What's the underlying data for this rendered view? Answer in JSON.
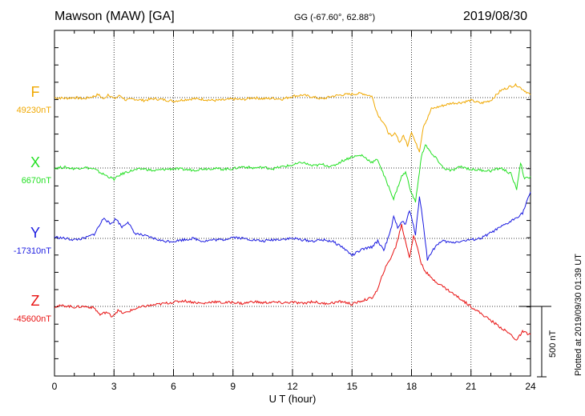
{
  "header": {
    "station": "Mawson (MAW)  [GA]",
    "coords": "GG (-67.60°,  62.88°)",
    "date": "2019/08/30"
  },
  "footer_note": "Plotted at 2019/09/30 01:39 UT",
  "scale_label": "500 nT",
  "chart_data": {
    "type": "line",
    "xlabel": "U T (hour)",
    "xlim": [
      0,
      24
    ],
    "xticks": [
      "0",
      "3",
      "6",
      "9",
      "12",
      "15",
      "18",
      "21",
      "24"
    ],
    "grid": true,
    "scale_bar_nT": 500,
    "series": [
      {
        "name": "F",
        "baseline_label": "49230nT",
        "color": "#f0a800",
        "x": [
          0,
          0.5,
          1,
          1.5,
          2,
          2.2,
          2.5,
          2.7,
          3,
          3.3,
          3.6,
          4,
          4.5,
          5,
          5.5,
          6,
          6.5,
          7,
          7.5,
          8,
          8.5,
          9,
          9.5,
          10,
          10.5,
          11,
          11.5,
          12,
          12.5,
          13,
          13.5,
          14,
          14.5,
          15,
          15.5,
          16,
          16.3,
          16.6,
          16.8,
          17,
          17.2,
          17.4,
          17.6,
          17.8,
          18,
          18.2,
          18.4,
          18.6,
          18.8,
          19,
          19.5,
          20,
          20.5,
          21,
          21.5,
          22,
          22.5,
          23,
          23.3,
          23.6,
          24
        ],
        "values": [
          0,
          -5,
          0,
          -8,
          10,
          22,
          -12,
          25,
          -8,
          15,
          -18,
          -10,
          -20,
          -8,
          -15,
          -25,
          -15,
          -8,
          -12,
          -20,
          -18,
          -10,
          -15,
          0,
          -8,
          -5,
          -10,
          10,
          18,
          5,
          -10,
          10,
          20,
          25,
          30,
          10,
          -120,
          -180,
          -240,
          -280,
          -250,
          -320,
          -270,
          -340,
          -240,
          -320,
          -380,
          -200,
          -150,
          -80,
          -60,
          -40,
          -35,
          -20,
          -40,
          -20,
          50,
          80,
          90,
          60,
          20
        ]
      },
      {
        "name": "X",
        "baseline_label": "6670nT",
        "color": "#22e022",
        "x": [
          0,
          0.5,
          1,
          1.5,
          2,
          2.4,
          2.7,
          3,
          3.3,
          3.6,
          4,
          4.5,
          5,
          5.5,
          6,
          6.5,
          7,
          7.5,
          8,
          8.5,
          9,
          9.5,
          10,
          10.5,
          11,
          11.5,
          12,
          12.5,
          13,
          13.5,
          14,
          14.5,
          15,
          15.5,
          16,
          16.3,
          16.6,
          16.9,
          17.1,
          17.3,
          17.5,
          17.7,
          18,
          18.2,
          18.5,
          18.7,
          19,
          19.3,
          19.6,
          20,
          20.5,
          21,
          21.5,
          22,
          22.5,
          23,
          23.3,
          23.5,
          23.7,
          24
        ],
        "values": [
          0,
          5,
          -5,
          5,
          -8,
          -40,
          -60,
          -80,
          -50,
          -30,
          -15,
          -5,
          -20,
          -10,
          -5,
          -10,
          -15,
          -5,
          -3,
          -8,
          -5,
          10,
          0,
          5,
          -5,
          10,
          20,
          40,
          15,
          25,
          10,
          50,
          80,
          90,
          40,
          60,
          -50,
          -150,
          -220,
          -140,
          -60,
          -30,
          -180,
          -240,
          80,
          170,
          100,
          60,
          0,
          -20,
          10,
          -10,
          -15,
          -20,
          0,
          -40,
          -150,
          40,
          -80,
          -60
        ]
      },
      {
        "name": "Y",
        "baseline_label": "-17310nT",
        "color": "#1a1ae0",
        "x": [
          0,
          0.5,
          1,
          1.5,
          2,
          2.3,
          2.5,
          2.8,
          3.1,
          3.4,
          3.7,
          4,
          4.5,
          5,
          5.5,
          6,
          6.5,
          7,
          7.5,
          8,
          8.5,
          9,
          9.5,
          10,
          10.5,
          11,
          11.5,
          12,
          12.5,
          13,
          13.5,
          14,
          14.5,
          15,
          15.5,
          16,
          16.3,
          16.6,
          16.9,
          17.1,
          17.3,
          17.5,
          17.7,
          17.9,
          18.2,
          18.4,
          18.6,
          18.8,
          19,
          19.3,
          19.6,
          20,
          20.5,
          21,
          21.5,
          22,
          22.5,
          23,
          23.3,
          23.6,
          24
        ],
        "values": [
          10,
          0,
          -10,
          0,
          30,
          100,
          150,
          100,
          140,
          80,
          120,
          40,
          20,
          0,
          -20,
          -20,
          -10,
          0,
          -20,
          -10,
          -10,
          10,
          0,
          -10,
          -20,
          -10,
          -5,
          0,
          -10,
          -20,
          -10,
          -20,
          -60,
          -120,
          -80,
          -60,
          -20,
          -80,
          30,
          150,
          80,
          120,
          100,
          200,
          30,
          300,
          100,
          -150,
          -100,
          -40,
          -20,
          -30,
          -20,
          -10,
          0,
          40,
          80,
          120,
          150,
          180,
          330
        ]
      },
      {
        "name": "Z",
        "baseline_label": "-45600nT",
        "color": "#e81010",
        "x": [
          0,
          0.5,
          1,
          1.5,
          2,
          2.3,
          2.6,
          2.9,
          3.2,
          3.5,
          4,
          4.5,
          5,
          5.5,
          6,
          6.5,
          7,
          7.5,
          8,
          8.5,
          9,
          9.5,
          10,
          10.5,
          11,
          11.5,
          12,
          12.5,
          13,
          13.5,
          14,
          14.5,
          15,
          15.5,
          16,
          16.3,
          16.6,
          16.9,
          17.2,
          17.5,
          17.7,
          17.9,
          18.1,
          18.3,
          18.5,
          18.7,
          19,
          19.5,
          20,
          20.5,
          21,
          21.5,
          22,
          22.5,
          23,
          23.3,
          23.6,
          24
        ],
        "values": [
          0,
          5,
          -5,
          0,
          -10,
          -60,
          -40,
          -70,
          -30,
          -50,
          -20,
          0,
          10,
          20,
          30,
          40,
          30,
          20,
          35,
          25,
          30,
          20,
          35,
          25,
          30,
          25,
          30,
          20,
          35,
          20,
          25,
          35,
          15,
          40,
          60,
          120,
          250,
          330,
          420,
          580,
          460,
          350,
          500,
          420,
          300,
          250,
          200,
          150,
          100,
          50,
          0,
          -50,
          -100,
          -150,
          -200,
          -240,
          -180,
          -200
        ]
      }
    ]
  }
}
